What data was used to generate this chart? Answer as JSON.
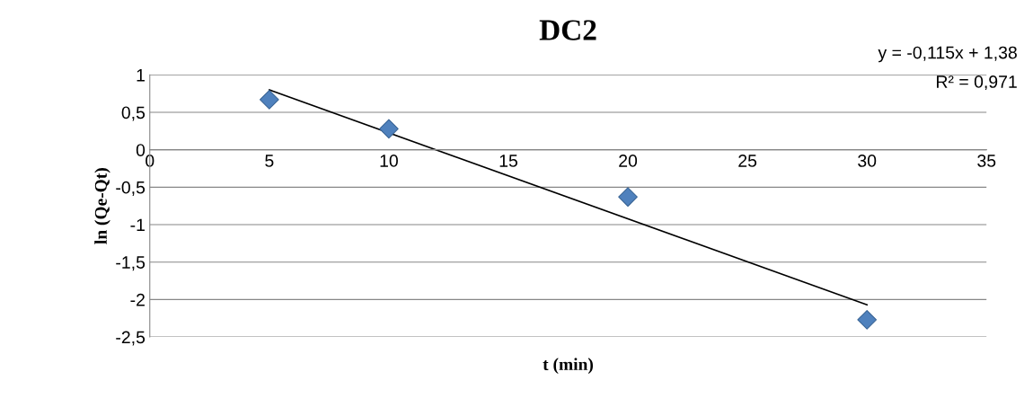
{
  "chart_data": {
    "type": "scatter",
    "title": "DC2",
    "xlabel": "t (min)",
    "ylabel": "ln (Qe-Qt)",
    "xlim": [
      0,
      35
    ],
    "xticks": [
      0,
      5,
      10,
      15,
      20,
      25,
      30,
      35
    ],
    "ylim": [
      -2.5,
      1
    ],
    "yticks": [
      {
        "value": 1,
        "label": "1"
      },
      {
        "value": 0.5,
        "label": "0,5"
      },
      {
        "value": 0,
        "label": "0"
      },
      {
        "value": -0.5,
        "label": "-0,5"
      },
      {
        "value": -1,
        "label": "-1"
      },
      {
        "value": -1.5,
        "label": "-1,5"
      },
      {
        "value": -2,
        "label": "-2"
      },
      {
        "value": -2.5,
        "label": "-2,5"
      }
    ],
    "grid": "y",
    "marker": "diamond",
    "legend": false,
    "series": [
      {
        "color": "#4f81bd",
        "x": [
          5,
          10,
          20,
          30
        ],
        "values": [
          0.67,
          0.28,
          -0.63,
          -2.27
        ]
      },
      {
        "type": "line",
        "color": "#000000",
        "x": [
          5,
          30
        ],
        "values": [
          0.8,
          -2.07
        ],
        "line_style": "solid",
        "marker": "none"
      }
    ],
    "annotations": [
      "y = -0,115x + 1,38",
      "R² = 0,971"
    ]
  }
}
